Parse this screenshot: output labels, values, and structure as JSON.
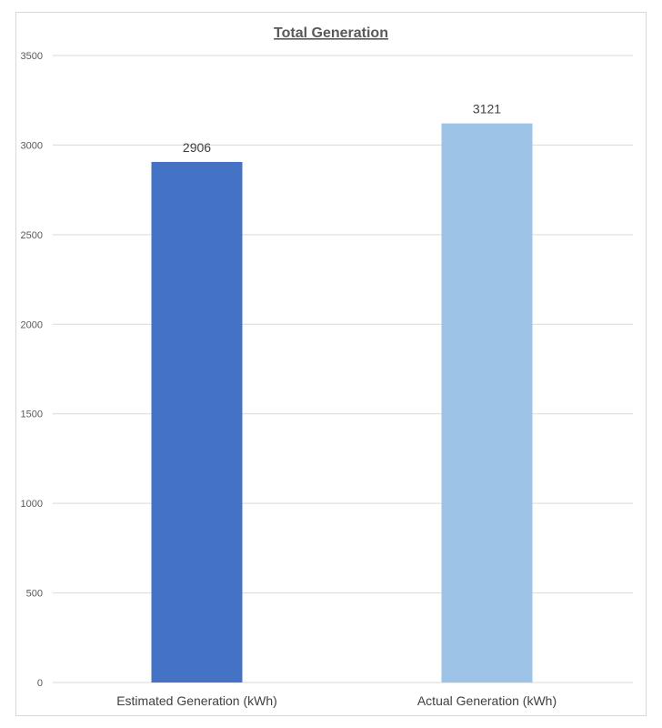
{
  "chart_data": {
    "type": "bar",
    "title": "Total Generation",
    "xlabel": "",
    "ylabel": "",
    "categories": [
      "Estimated Generation (kWh)",
      "Actual Generation (kWh)"
    ],
    "values": [
      2906,
      3121
    ],
    "data_labels": [
      "2906",
      "3121"
    ],
    "ylim": [
      0,
      3500
    ],
    "yticks": [
      0,
      500,
      1000,
      1500,
      2000,
      2500,
      3000,
      3500
    ],
    "ytick_labels": [
      "0",
      "500",
      "1000",
      "1500",
      "2000",
      "2500",
      "3000",
      "3500"
    ],
    "grid": true,
    "legend": "none",
    "colors": [
      "#4472c4",
      "#9dc3e6"
    ]
  }
}
